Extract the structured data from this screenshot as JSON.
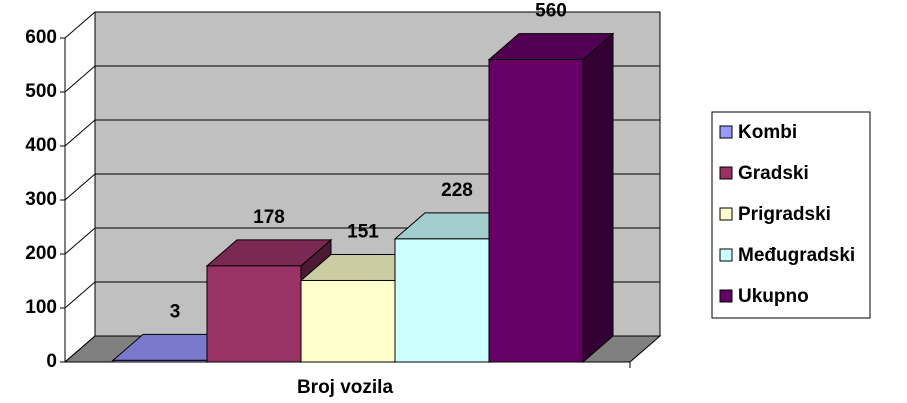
{
  "chart_data": {
    "type": "bar3d",
    "categories": [
      "Broj vozila"
    ],
    "series": [
      {
        "name": "Kombi",
        "color": "#9999ff",
        "values": [
          3
        ]
      },
      {
        "name": "Gradski",
        "color": "#993366",
        "values": [
          178
        ]
      },
      {
        "name": "Prigradski",
        "color": "#ffffcc",
        "values": [
          151
        ]
      },
      {
        "name": "Međugradski",
        "color": "#ccffff",
        "values": [
          228
        ]
      },
      {
        "name": "Ukupno",
        "color": "#660066",
        "values": [
          560
        ]
      }
    ],
    "ylim": [
      0,
      600
    ],
    "yticks": [
      0,
      100,
      200,
      300,
      400,
      500,
      600
    ],
    "grid": true,
    "legend": "right"
  }
}
